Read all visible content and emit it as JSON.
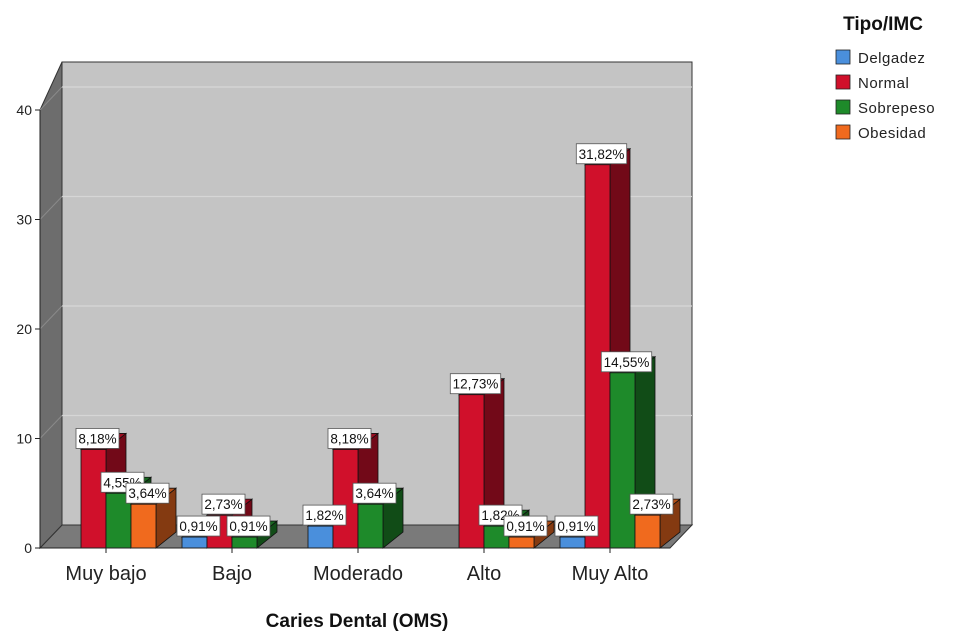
{
  "chart_data": {
    "type": "bar",
    "xlabel": "Caries Dental (OMS)",
    "ylabel": "",
    "ylim": [
      0,
      40
    ],
    "yticks": [
      0,
      10,
      20,
      30,
      40
    ],
    "categories": [
      "Muy bajo",
      "Bajo",
      "Moderado",
      "Alto",
      "Muy Alto"
    ],
    "legend_title": "Tipo/IMC",
    "legend_position": "top-right",
    "grid": true,
    "style": "3d",
    "series": [
      {
        "name": "Delgadez",
        "color": "#4a8fdc",
        "values": [
          0,
          1,
          2,
          0,
          1
        ],
        "labels": [
          "",
          "0,91%",
          "1,82%",
          "",
          "0,91%"
        ]
      },
      {
        "name": "Normal",
        "color": "#d0102b",
        "values": [
          9,
          3,
          9,
          14,
          35
        ],
        "labels": [
          "8,18%",
          "2,73%",
          "8,18%",
          "12,73%",
          "31,82%"
        ]
      },
      {
        "name": "Sobrepeso",
        "color": "#1e8a2a",
        "values": [
          5,
          1,
          4,
          2,
          16
        ],
        "labels": [
          "4,55%",
          "0,91%",
          "3,64%",
          "1,82%",
          "14,55%"
        ]
      },
      {
        "name": "Obesidad",
        "color": "#f06a1e",
        "values": [
          4,
          0,
          0,
          1,
          3
        ],
        "labels": [
          "3,64%",
          "",
          "",
          "0,91%",
          "2,73%"
        ]
      }
    ]
  }
}
